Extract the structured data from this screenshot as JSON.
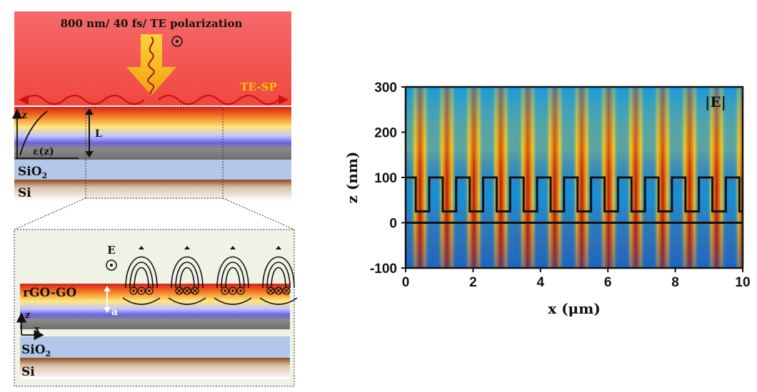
{
  "left_panel": {
    "laser_label": "800 nm/ 40 fs/ TE polarization",
    "sp_label": "TE-SP",
    "z_axis": "z",
    "eps_label": "ε(z)",
    "thickness_label": "L",
    "sio2_label": "SiO",
    "sio2_sub": "2",
    "si_label": "Si"
  },
  "zoom_panel": {
    "field_label": "E",
    "layer_label": "rGO-GO",
    "depth_label": "a",
    "z_axis": "z",
    "x_axis": "x",
    "sio2_label": "SiO",
    "sio2_sub": "2",
    "si_label": "Si"
  },
  "field_map": {
    "field_label": "|E|",
    "xlabel": "x (μm)",
    "ylabel": "z (nm)",
    "xlim": [
      0,
      10
    ],
    "ylim": [
      -100,
      300
    ],
    "xticks": [
      "0",
      "2",
      "4",
      "6",
      "8",
      "10"
    ],
    "yticks": [
      "300",
      "200",
      "100",
      "0",
      "-100"
    ],
    "grating_period_um": 0.8,
    "grating_top_nm": 100,
    "grating_bottom_nm": 25,
    "surface_nm": 0,
    "colors": {
      "high": "#c21a0a",
      "mid": "#ffd21a",
      "low": "#18a0e0",
      "min": "#1e3ab0"
    }
  }
}
